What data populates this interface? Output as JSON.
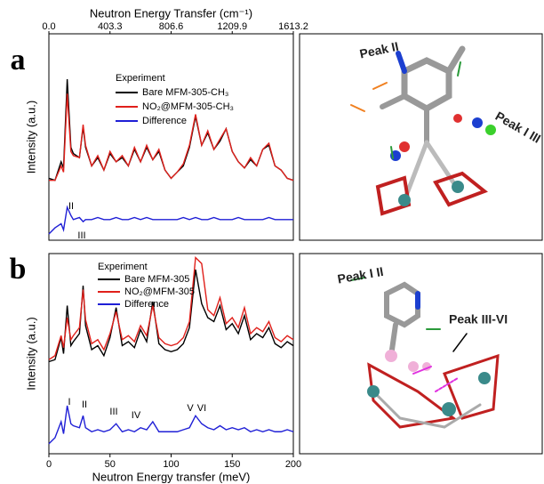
{
  "chart_data": [
    {
      "type": "line",
      "panel_label": "a",
      "x2label": "Neutron Energy Transfer (cm⁻¹)",
      "x2lim": [
        0,
        1613.2
      ],
      "x2ticks": [
        {
          "value": 0,
          "label": "0.0"
        },
        403.3,
        806.6,
        1209.9,
        1613.2
      ],
      "ylabel": "Intensity (a.u.)",
      "xlim": [
        0,
        200
      ],
      "ylim": [
        0,
        10
      ],
      "legend_title": "Experiment",
      "x": [
        0,
        5,
        10,
        12,
        15,
        18,
        20,
        25,
        28,
        30,
        35,
        40,
        45,
        50,
        55,
        60,
        65,
        70,
        75,
        80,
        85,
        90,
        95,
        100,
        105,
        110,
        115,
        120,
        125,
        130,
        135,
        140,
        145,
        150,
        155,
        160,
        165,
        170,
        175,
        180,
        185,
        190,
        195,
        200
      ],
      "series": [
        {
          "name": "Bare MFM-305-CH₃",
          "color": "#000000",
          "values": [
            3.0,
            2.9,
            3.8,
            3.5,
            7.8,
            4.5,
            4.2,
            4.0,
            5.5,
            4.5,
            3.6,
            4.0,
            3.4,
            4.2,
            3.8,
            4.0,
            3.6,
            4.4,
            3.8,
            4.5,
            3.9,
            4.3,
            3.4,
            3.0,
            3.3,
            3.6,
            4.5,
            6.0,
            4.6,
            5.2,
            4.4,
            4.8,
            5.4,
            4.3,
            3.8,
            3.5,
            3.9,
            3.6,
            4.4,
            4.6,
            3.6,
            3.4,
            3.0,
            2.9
          ]
        },
        {
          "name": "NO₂@MFM-305-CH₃",
          "color": "#e0201b",
          "values": [
            2.9,
            2.9,
            3.6,
            3.3,
            7.1,
            4.3,
            4.1,
            4.0,
            5.6,
            4.6,
            3.6,
            4.1,
            3.4,
            4.3,
            3.8,
            4.1,
            3.6,
            4.5,
            3.8,
            4.6,
            3.9,
            4.4,
            3.4,
            3.0,
            3.3,
            3.7,
            4.6,
            6.1,
            4.6,
            5.3,
            4.4,
            4.9,
            5.4,
            4.3,
            3.8,
            3.5,
            4.0,
            3.6,
            4.4,
            4.7,
            3.6,
            3.4,
            3.0,
            2.9
          ]
        },
        {
          "name": "Difference",
          "color": "#1f1fd6",
          "values": [
            0.3,
            0.6,
            0.8,
            0.5,
            1.6,
            1.2,
            1.0,
            1.1,
            0.9,
            1.0,
            1.0,
            1.1,
            1.0,
            1.0,
            1.1,
            1.0,
            1.0,
            1.1,
            1.0,
            1.1,
            1.0,
            1.0,
            1.0,
            1.0,
            1.0,
            1.1,
            1.0,
            1.1,
            1.0,
            1.0,
            1.1,
            1.0,
            1.0,
            1.0,
            1.1,
            1.0,
            1.0,
            1.0,
            1.0,
            1.1,
            1.0,
            1.0,
            1.0,
            1.0
          ]
        }
      ],
      "annotations": [
        "II",
        "III"
      ],
      "inset_labels": [
        "Peak II",
        "Peak I III"
      ]
    },
    {
      "type": "line",
      "panel_label": "b",
      "xlabel": "Neutron Energy transfer (meV)",
      "ylabel": "Intensity (a.u.)",
      "xlim": [
        0,
        200
      ],
      "xticks": [
        0,
        50,
        100,
        150,
        200
      ],
      "ylim": [
        0,
        10
      ],
      "legend_title": "Experiment",
      "x": [
        0,
        5,
        10,
        12,
        15,
        18,
        20,
        25,
        28,
        30,
        35,
        40,
        45,
        50,
        55,
        60,
        65,
        70,
        75,
        80,
        85,
        90,
        95,
        100,
        105,
        110,
        115,
        120,
        125,
        130,
        135,
        140,
        145,
        150,
        155,
        160,
        165,
        170,
        175,
        180,
        185,
        190,
        195,
        200
      ],
      "series": [
        {
          "name": "Bare MFM-305",
          "color": "#000000",
          "values": [
            4.6,
            4.7,
            5.8,
            5.0,
            7.4,
            5.4,
            5.6,
            6.0,
            8.4,
            6.4,
            5.2,
            5.4,
            4.9,
            5.8,
            7.3,
            5.4,
            5.6,
            5.3,
            6.2,
            5.6,
            7.6,
            5.5,
            5.2,
            5.1,
            5.2,
            5.5,
            6.3,
            9.2,
            7.5,
            6.8,
            6.6,
            7.4,
            6.2,
            6.5,
            6.0,
            6.9,
            5.7,
            6.0,
            5.8,
            6.3,
            5.5,
            5.3,
            5.6,
            5.4
          ]
        },
        {
          "name": "NO₂@MFM-305",
          "color": "#e0201b",
          "values": [
            4.7,
            4.9,
            5.9,
            5.3,
            6.8,
            5.7,
            5.9,
            6.3,
            8.2,
            6.7,
            5.5,
            5.7,
            5.2,
            6.0,
            7.1,
            5.7,
            5.9,
            5.6,
            6.4,
            5.9,
            7.4,
            5.8,
            5.5,
            5.4,
            5.5,
            5.8,
            6.6,
            9.8,
            9.5,
            7.2,
            6.9,
            7.8,
            6.5,
            6.8,
            6.3,
            7.3,
            6.0,
            6.3,
            6.1,
            6.6,
            5.8,
            5.6,
            5.9,
            5.7
          ]
        },
        {
          "name": "Difference",
          "color": "#1f1fd6",
          "values": [
            0.5,
            0.8,
            1.6,
            1.0,
            2.4,
            1.5,
            1.4,
            1.3,
            1.9,
            1.3,
            1.1,
            1.2,
            1.1,
            1.2,
            1.5,
            1.1,
            1.2,
            1.1,
            1.3,
            1.2,
            1.6,
            1.1,
            1.1,
            1.1,
            1.1,
            1.2,
            1.3,
            1.9,
            1.5,
            1.3,
            1.2,
            1.4,
            1.2,
            1.3,
            1.2,
            1.3,
            1.1,
            1.2,
            1.1,
            1.2,
            1.1,
            1.1,
            1.2,
            1.1
          ]
        }
      ],
      "annotations": [
        "I",
        "II",
        "III",
        "IV",
        "V",
        "VI"
      ],
      "inset_labels": [
        "Peak I II",
        "Peak III-VI"
      ]
    }
  ]
}
